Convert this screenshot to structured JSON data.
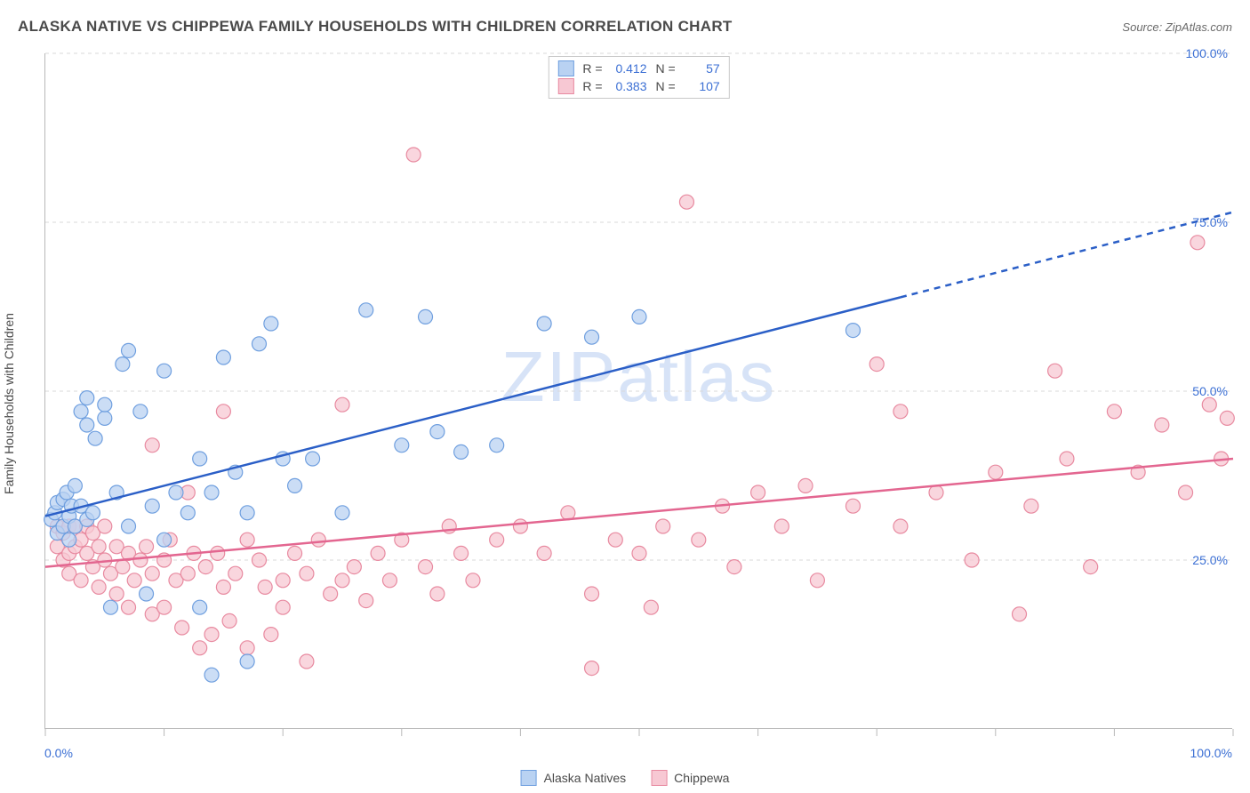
{
  "title": "ALASKA NATIVE VS CHIPPEWA FAMILY HOUSEHOLDS WITH CHILDREN CORRELATION CHART",
  "source_label": "Source:",
  "source_value": "ZipAtlas.com",
  "y_axis_label": "Family Households with Children",
  "watermark_text": "ZIPatlas",
  "chart": {
    "type": "scatter",
    "xlim": [
      0,
      100
    ],
    "ylim": [
      0,
      100
    ],
    "x_ticks": [
      0,
      10,
      20,
      30,
      40,
      50,
      60,
      70,
      80,
      90,
      100
    ],
    "x_tick_labels_shown": {
      "0": "0.0%",
      "100": "100.0%"
    },
    "y_tick_labels": [
      {
        "value": 25,
        "label": "25.0%"
      },
      {
        "value": 50,
        "label": "50.0%"
      },
      {
        "value": 75,
        "label": "75.0%"
      },
      {
        "value": 100,
        "label": "100.0%"
      }
    ],
    "grid_color": "#d8d8d8",
    "background_color": "#ffffff",
    "tick_label_color": "#3b6fd4",
    "tick_label_fontsize": 14,
    "series": [
      {
        "name": "Alaska Natives",
        "marker_fill": "#b9d2f2",
        "marker_stroke": "#6f9fdf",
        "marker_radius": 8,
        "marker_opacity": 0.75,
        "trend_color": "#2b5fc7",
        "trend_width": 2.5,
        "trend_solid_until_x": 72,
        "trend_line": {
          "y_at_x0": 31.5,
          "y_at_x100": 76.5
        },
        "R": "0.412",
        "N": "57",
        "points": [
          [
            0.5,
            31
          ],
          [
            0.8,
            32
          ],
          [
            1,
            29
          ],
          [
            1,
            33.5
          ],
          [
            1.5,
            30
          ],
          [
            1.5,
            34
          ],
          [
            1.8,
            35
          ],
          [
            2,
            28
          ],
          [
            2,
            31.5
          ],
          [
            2.2,
            33
          ],
          [
            2.5,
            30
          ],
          [
            2.5,
            36
          ],
          [
            3,
            33
          ],
          [
            3,
            47
          ],
          [
            3.5,
            31
          ],
          [
            3.5,
            45
          ],
          [
            3.5,
            49
          ],
          [
            4,
            32
          ],
          [
            4.2,
            43
          ],
          [
            5,
            46
          ],
          [
            5,
            48
          ],
          [
            5.5,
            18
          ],
          [
            6,
            35
          ],
          [
            6.5,
            54
          ],
          [
            7,
            30
          ],
          [
            7,
            56
          ],
          [
            8,
            47
          ],
          [
            8.5,
            20
          ],
          [
            9,
            33
          ],
          [
            10,
            28
          ],
          [
            10,
            53
          ],
          [
            11,
            35
          ],
          [
            12,
            32
          ],
          [
            13,
            18
          ],
          [
            13,
            40
          ],
          [
            14,
            35
          ],
          [
            14,
            8
          ],
          [
            15,
            55
          ],
          [
            16,
            38
          ],
          [
            17,
            32
          ],
          [
            17,
            10
          ],
          [
            18,
            57
          ],
          [
            19,
            60
          ],
          [
            20,
            40
          ],
          [
            21,
            36
          ],
          [
            22.5,
            40
          ],
          [
            25,
            32
          ],
          [
            27,
            62
          ],
          [
            30,
            42
          ],
          [
            32,
            61
          ],
          [
            33,
            44
          ],
          [
            35,
            41
          ],
          [
            38,
            42
          ],
          [
            42,
            60
          ],
          [
            46,
            58
          ],
          [
            50,
            61
          ],
          [
            68,
            59
          ]
        ]
      },
      {
        "name": "Chippewa",
        "marker_fill": "#f7c8d3",
        "marker_stroke": "#e88aa0",
        "marker_radius": 8,
        "marker_opacity": 0.75,
        "trend_color": "#e36690",
        "trend_width": 2.5,
        "trend_solid_until_x": 100,
        "trend_line": {
          "y_at_x0": 24,
          "y_at_x100": 40
        },
        "R": "0.383",
        "N": "107",
        "points": [
          [
            1,
            30
          ],
          [
            1,
            27
          ],
          [
            1.5,
            29
          ],
          [
            1.5,
            25
          ],
          [
            2,
            30
          ],
          [
            2,
            26
          ],
          [
            2,
            23
          ],
          [
            2.5,
            30
          ],
          [
            2.5,
            27
          ],
          [
            3,
            28
          ],
          [
            3,
            22
          ],
          [
            3.5,
            26
          ],
          [
            3.5,
            30
          ],
          [
            4,
            24
          ],
          [
            4,
            29
          ],
          [
            4.5,
            21
          ],
          [
            4.5,
            27
          ],
          [
            5,
            25
          ],
          [
            5,
            30
          ],
          [
            5.5,
            23
          ],
          [
            6,
            20
          ],
          [
            6,
            27
          ],
          [
            6.5,
            24
          ],
          [
            7,
            26
          ],
          [
            7,
            18
          ],
          [
            7.5,
            22
          ],
          [
            8,
            25
          ],
          [
            8.5,
            27
          ],
          [
            9,
            17
          ],
          [
            9,
            23
          ],
          [
            9,
            42
          ],
          [
            10,
            25
          ],
          [
            10,
            18
          ],
          [
            10.5,
            28
          ],
          [
            11,
            22
          ],
          [
            11.5,
            15
          ],
          [
            12,
            23
          ],
          [
            12,
            35
          ],
          [
            12.5,
            26
          ],
          [
            13,
            12
          ],
          [
            13.5,
            24
          ],
          [
            14,
            14
          ],
          [
            14.5,
            26
          ],
          [
            15,
            21
          ],
          [
            15,
            47
          ],
          [
            15.5,
            16
          ],
          [
            16,
            23
          ],
          [
            17,
            28
          ],
          [
            17,
            12
          ],
          [
            18,
            25
          ],
          [
            18.5,
            21
          ],
          [
            19,
            14
          ],
          [
            20,
            22
          ],
          [
            20,
            18
          ],
          [
            21,
            26
          ],
          [
            22,
            23
          ],
          [
            22,
            10
          ],
          [
            23,
            28
          ],
          [
            24,
            20
          ],
          [
            25,
            22
          ],
          [
            25,
            48
          ],
          [
            26,
            24
          ],
          [
            27,
            19
          ],
          [
            28,
            26
          ],
          [
            29,
            22
          ],
          [
            30,
            28
          ],
          [
            31,
            85
          ],
          [
            32,
            24
          ],
          [
            33,
            20
          ],
          [
            34,
            30
          ],
          [
            35,
            26
          ],
          [
            36,
            22
          ],
          [
            38,
            28
          ],
          [
            40,
            30
          ],
          [
            42,
            26
          ],
          [
            44,
            32
          ],
          [
            46,
            9
          ],
          [
            46,
            20
          ],
          [
            48,
            28
          ],
          [
            50,
            26
          ],
          [
            51,
            18
          ],
          [
            52,
            30
          ],
          [
            54,
            78
          ],
          [
            55,
            28
          ],
          [
            57,
            33
          ],
          [
            58,
            24
          ],
          [
            60,
            35
          ],
          [
            62,
            30
          ],
          [
            64,
            36
          ],
          [
            65,
            22
          ],
          [
            68,
            33
          ],
          [
            70,
            54
          ],
          [
            72,
            30
          ],
          [
            72,
            47
          ],
          [
            75,
            35
          ],
          [
            78,
            25
          ],
          [
            80,
            38
          ],
          [
            82,
            17
          ],
          [
            83,
            33
          ],
          [
            85,
            53
          ],
          [
            86,
            40
          ],
          [
            88,
            24
          ],
          [
            90,
            47
          ],
          [
            92,
            38
          ],
          [
            94,
            45
          ],
          [
            96,
            35
          ],
          [
            97,
            72
          ],
          [
            98,
            48
          ],
          [
            99,
            40
          ],
          [
            99.5,
            46
          ]
        ]
      }
    ]
  },
  "stats_legend": {
    "R_label": "R =",
    "N_label": "N ="
  },
  "bottom_legend_items": [
    "Alaska Natives",
    "Chippewa"
  ]
}
